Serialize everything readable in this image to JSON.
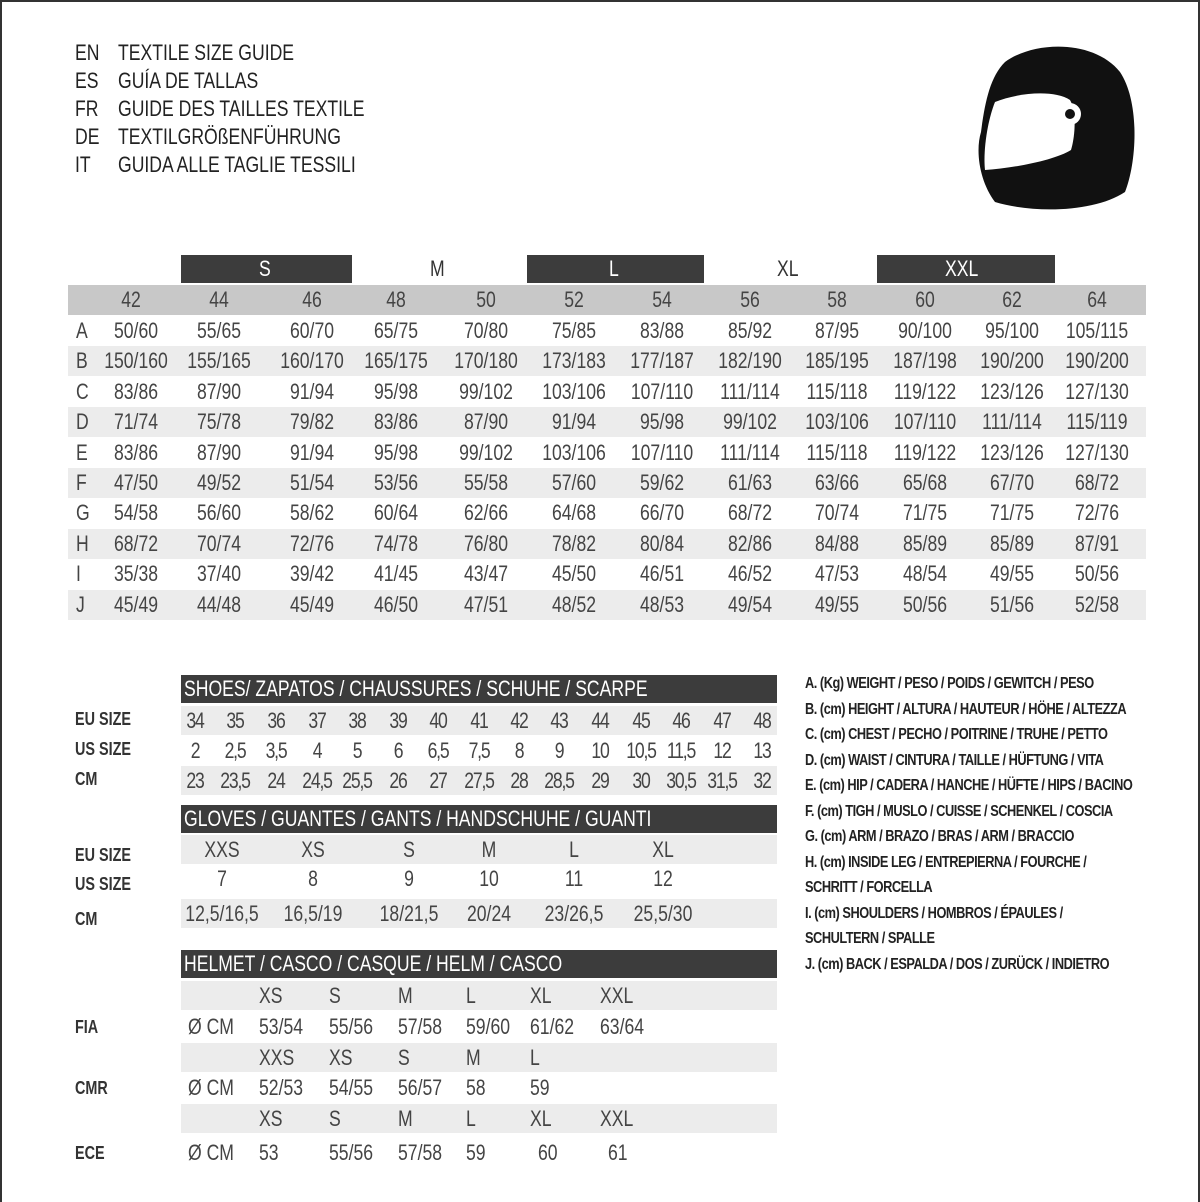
{
  "titles": [
    {
      "code": "EN",
      "text": "TEXTILE SIZE GUIDE"
    },
    {
      "code": "ES",
      "text": "GUÍA DE TALLAS"
    },
    {
      "code": "FR",
      "text": "GUIDE DES TAILLES TEXTILE"
    },
    {
      "code": "DE",
      "text": "TEXTILGRÖßENFÜHRUNG"
    },
    {
      "code": "IT",
      "text": "GUIDA ALLE TAGLIE TESSILI"
    }
  ],
  "icon": "helmet-icon",
  "textile": {
    "size_groups": [
      {
        "label": "S",
        "dark": true
      },
      {
        "label": "M",
        "dark": false
      },
      {
        "label": "L",
        "dark": true
      },
      {
        "label": "XL",
        "dark": false
      },
      {
        "label": "XXL",
        "dark": true
      }
    ],
    "sizes": [
      "42",
      "44",
      "46",
      "48",
      "50",
      "52",
      "54",
      "56",
      "58",
      "60",
      "62",
      "64"
    ],
    "rows": [
      {
        "key": "A",
        "values": [
          "50/60",
          "55/65",
          "60/70",
          "65/75",
          "70/80",
          "75/85",
          "83/88",
          "85/92",
          "87/95",
          "90/100",
          "95/100",
          "105/115"
        ]
      },
      {
        "key": "B",
        "values": [
          "150/160",
          "155/165",
          "160/170",
          "165/175",
          "170/180",
          "173/183",
          "177/187",
          "182/190",
          "185/195",
          "187/198",
          "190/200",
          "190/200"
        ]
      },
      {
        "key": "C",
        "values": [
          "83/86",
          "87/90",
          "91/94",
          "95/98",
          "99/102",
          "103/106",
          "107/110",
          "111/114",
          "115/118",
          "119/122",
          "123/126",
          "127/130"
        ]
      },
      {
        "key": "D",
        "values": [
          "71/74",
          "75/78",
          "79/82",
          "83/86",
          "87/90",
          "91/94",
          "95/98",
          "99/102",
          "103/106",
          "107/110",
          "111/114",
          "115/119"
        ]
      },
      {
        "key": "E",
        "values": [
          "83/86",
          "87/90",
          "91/94",
          "95/98",
          "99/102",
          "103/106",
          "107/110",
          "111/114",
          "115/118",
          "119/122",
          "123/126",
          "127/130"
        ]
      },
      {
        "key": "F",
        "values": [
          "47/50",
          "49/52",
          "51/54",
          "53/56",
          "55/58",
          "57/60",
          "59/62",
          "61/63",
          "63/66",
          "65/68",
          "67/70",
          "68/72"
        ]
      },
      {
        "key": "G",
        "values": [
          "54/58",
          "56/60",
          "58/62",
          "60/64",
          "62/66",
          "64/68",
          "66/70",
          "68/72",
          "70/74",
          "71/75",
          "71/75",
          "72/76"
        ]
      },
      {
        "key": "H",
        "values": [
          "68/72",
          "70/74",
          "72/76",
          "74/78",
          "76/80",
          "78/82",
          "80/84",
          "82/86",
          "84/88",
          "85/89",
          "85/89",
          "87/91"
        ]
      },
      {
        "key": "I",
        "values": [
          "35/38",
          "37/40",
          "39/42",
          "41/45",
          "43/47",
          "45/50",
          "46/51",
          "46/52",
          "47/53",
          "48/54",
          "49/55",
          "50/56"
        ]
      },
      {
        "key": "J",
        "values": [
          "45/49",
          "44/48",
          "45/49",
          "46/50",
          "47/51",
          "48/52",
          "48/53",
          "49/54",
          "49/55",
          "50/56",
          "51/56",
          "52/58"
        ]
      }
    ]
  },
  "shoes": {
    "header": "SHOES/ ZAPATOS / CHAUSSURES / SCHUHE / SCARPE",
    "rows": [
      {
        "label": "EU SIZE",
        "values": [
          "34",
          "35",
          "36",
          "37",
          "38",
          "39",
          "40",
          "41",
          "42",
          "43",
          "44",
          "45",
          "46",
          "47",
          "48"
        ]
      },
      {
        "label": "US SIZE",
        "values": [
          "2",
          "2,5",
          "3,5",
          "4",
          "5",
          "6",
          "6,5",
          "7,5",
          "8",
          "9",
          "10",
          "10,5",
          "11,5",
          "12",
          "13"
        ]
      },
      {
        "label": "CM",
        "values": [
          "23",
          "23,5",
          "24",
          "24,5",
          "25,5",
          "26",
          "27",
          "27,5",
          "28",
          "28,5",
          "29",
          "30",
          "30,5",
          "31,5",
          "32"
        ]
      }
    ]
  },
  "gloves": {
    "header": "GLOVES / GUANTES / GANTS / HANDSCHUHE / GUANTI",
    "rows": [
      {
        "label": "EU SIZE",
        "values": [
          "XXS",
          "XS",
          "S",
          "M",
          "L",
          "XL"
        ]
      },
      {
        "label": "US SIZE",
        "values": [
          "7",
          "8",
          "9",
          "10",
          "11",
          "12"
        ]
      },
      {
        "label": "CM",
        "values": [
          "12,5/16,5",
          "16,5/19",
          "18/21,5",
          "20/24",
          "23/26,5",
          "25,5/30"
        ]
      }
    ]
  },
  "helmet": {
    "header": "HELMET / CASCO / CASQUE / HELM / CASCO",
    "unit": "Ø CM",
    "standards": [
      {
        "label": "FIA",
        "sizes": [
          "XS",
          "S",
          "M",
          "L",
          "XL",
          "XXL"
        ],
        "values": [
          "53/54",
          "55/56",
          "57/58",
          "59/60",
          "61/62",
          "63/64"
        ]
      },
      {
        "label": "CMR",
        "sizes": [
          "XXS",
          "XS",
          "S",
          "M",
          "L"
        ],
        "values": [
          "52/53",
          "54/55",
          "56/57",
          "58",
          "59"
        ]
      },
      {
        "label": "ECE",
        "sizes": [
          "XS",
          "S",
          "M",
          "L",
          "XL",
          "XXL"
        ],
        "values": [
          "53",
          "55/56",
          "57/58",
          "59",
          "60",
          "61"
        ]
      }
    ]
  },
  "legend": [
    "A. (Kg) WEIGHT / PESO / POIDS / GEWITCH / PESO",
    "B. (cm) HEIGHT / ALTURA / HAUTEUR / HÖHE / ALTEZZA",
    "C. (cm) CHEST / PECHO / POITRINE / TRUHE / PETTO",
    "D. (cm) WAIST / CINTURA / TAILLE / HÜFTUNG / VITA",
    "E. (cm) HIP / CADERA / HANCHE / HÜFTE / HIPS /  BACINO",
    "F.  (cm) TIGH / MUSLO / CUISSE / SCHENKEL / COSCIA",
    "G. (cm) ARM  / BRAZO / BRAS / ARM / BRACCIO",
    "H. (cm) INSIDE LEG / ENTREPIERNA / FOURCHE /",
    "SCHRITT / FORCELLA",
    "I.  (cm) SHOULDERS / HOMBROS / ÉPAULES /",
    "SCHULTERN / SPALLE",
    "J. (cm) BACK / ESPALDA / DOS / ZURÜCK / INDIETRO"
  ],
  "colors": {
    "dark_bar": "#3c3c3c",
    "header_gray": "#c8c8c8",
    "row_gray": "#ececec"
  }
}
